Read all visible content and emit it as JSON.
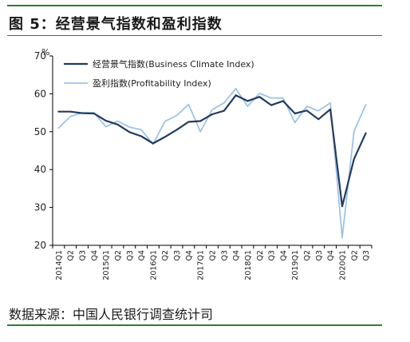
{
  "figure": {
    "title": "图 5：经营景气指数和盈利指数",
    "source": "数据来源：中国人民银行调查统计司"
  },
  "chart_data": {
    "type": "line",
    "x": [
      "2014Q1",
      "Q2",
      "Q3",
      "Q4",
      "2015Q1",
      "Q2",
      "Q3",
      "Q4",
      "2016Q1",
      "Q2",
      "Q3",
      "Q4",
      "2017Q1",
      "Q2",
      "Q3",
      "Q4",
      "2018Q1",
      "Q2",
      "Q3",
      "Q4",
      "2019Q1",
      "Q2",
      "Q3",
      "Q4",
      "2020Q1",
      "Q2",
      "Q3"
    ],
    "series": [
      {
        "name": "经营景气指数(Business Climate Index)",
        "color": "#243b5e",
        "values": [
          55.3,
          55.3,
          54.9,
          54.8,
          52.9,
          51.9,
          49.9,
          48.8,
          46.9,
          48.6,
          50.5,
          52.6,
          52.8,
          54.6,
          55.5,
          59.6,
          58.1,
          59.2,
          57.0,
          58.1,
          54.8,
          55.6,
          53.3,
          55.9,
          30.3,
          42.8,
          49.6
        ]
      },
      {
        "name": "盈利指数(Profitability Index)",
        "color": "#9ec3e8",
        "values": [
          51.0,
          54.0,
          55.0,
          55.0,
          51.3,
          52.8,
          51.2,
          50.5,
          46.7,
          52.7,
          54.3,
          57.2,
          50.0,
          55.8,
          57.6,
          61.4,
          56.7,
          60.1,
          58.9,
          58.9,
          52.4,
          56.7,
          55.5,
          57.6,
          22.0,
          50.1,
          57.1
        ]
      }
    ],
    "ylim": [
      20,
      70
    ],
    "yticks": [
      20,
      30,
      40,
      50,
      60,
      70
    ],
    "yunit": "%",
    "legend": "top-left",
    "grid": false
  }
}
